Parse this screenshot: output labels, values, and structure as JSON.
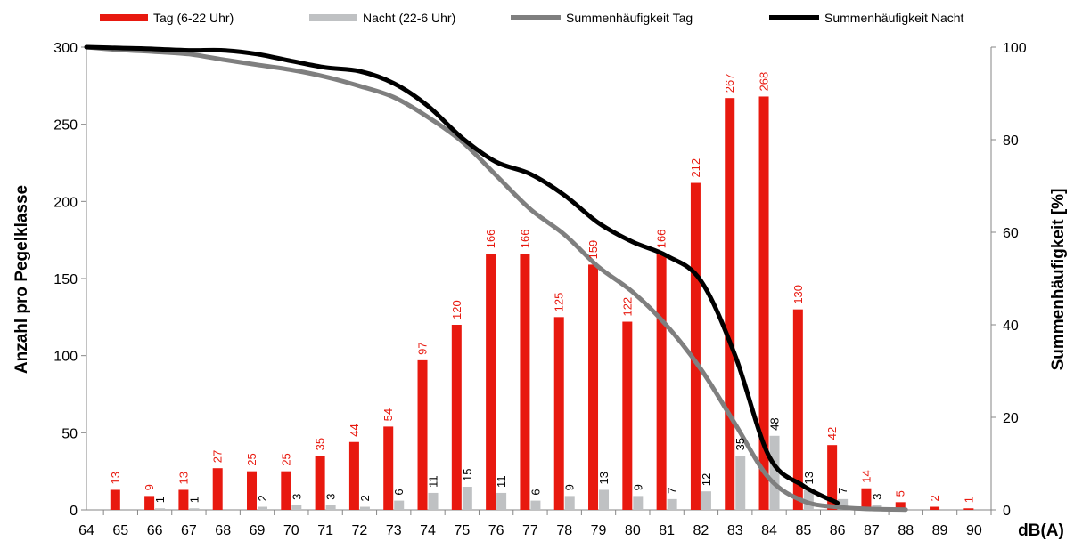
{
  "chart_data": {
    "type": "bar",
    "x_categories": [
      "64",
      "65",
      "66",
      "67",
      "68",
      "69",
      "70",
      "71",
      "72",
      "73",
      "74",
      "75",
      "76",
      "77",
      "78",
      "79",
      "80",
      "81",
      "82",
      "83",
      "84",
      "85",
      "86",
      "87",
      "88",
      "89",
      "90"
    ],
    "xlabel": "dB(A)",
    "ylabel_left": "Anzahl pro Pegelklasse",
    "ylabel_right": "Summenhäufigkeit [%]",
    "ylim_left": [
      0,
      300
    ],
    "yticks_left": [
      0,
      50,
      100,
      150,
      200,
      250,
      300
    ],
    "ylim_right": [
      0,
      100
    ],
    "yticks_right": [
      0,
      20,
      40,
      60,
      80,
      100
    ],
    "grid": false,
    "legend_position": "top",
    "bar_series": [
      {
        "name": "Tag (6-22 Uhr)",
        "color": "#e8190f",
        "label_color": "#e8190f",
        "values": [
          0,
          13,
          9,
          13,
          27,
          25,
          25,
          35,
          44,
          54,
          97,
          120,
          166,
          166,
          125,
          159,
          122,
          166,
          212,
          267,
          268,
          130,
          42,
          14,
          5,
          2,
          1
        ]
      },
      {
        "name": "Nacht (22-6 Uhr)",
        "color": "#bfc1c3",
        "label_color": "#000000",
        "values": [
          0,
          0,
          1,
          1,
          0,
          2,
          3,
          3,
          2,
          6,
          11,
          15,
          11,
          6,
          9,
          13,
          9,
          7,
          12,
          35,
          48,
          13,
          7,
          3,
          0,
          0,
          0
        ]
      }
    ],
    "line_series": [
      {
        "name": "Summenhäufigkeit Tag",
        "color": "#7f7f7f",
        "x": [
          "64",
          "65",
          "66",
          "67",
          "68",
          "69",
          "70",
          "71",
          "72",
          "73",
          "74",
          "75",
          "76",
          "77",
          "78",
          "79",
          "80",
          "81",
          "82",
          "83",
          "84",
          "85",
          "86",
          "87",
          "88"
        ],
        "values": [
          100,
          99.4,
          99.0,
          98.5,
          97.3,
          96.2,
          95.1,
          93.6,
          91.6,
          89.2,
          84.9,
          79.6,
          72.3,
          65.0,
          59.5,
          52.5,
          47.1,
          39.8,
          30.4,
          18.6,
          6.8,
          1.9,
          0.6,
          0.2,
          0.05
        ]
      },
      {
        "name": "Summenhäufigkeit Nacht",
        "color": "#000000",
        "x": [
          "64",
          "65",
          "66",
          "67",
          "68",
          "69",
          "70",
          "71",
          "72",
          "73",
          "74",
          "75",
          "76",
          "77",
          "78",
          "79",
          "80",
          "81",
          "82",
          "83",
          "84",
          "85",
          "86"
        ],
        "values": [
          100,
          99.8,
          99.6,
          99.3,
          99.3,
          98.5,
          97.0,
          95.6,
          94.8,
          92.2,
          87.3,
          80.4,
          75.2,
          72.6,
          68.0,
          62.0,
          57.9,
          54.9,
          49.5,
          33.4,
          11.5,
          5.2,
          1.5
        ]
      }
    ]
  }
}
